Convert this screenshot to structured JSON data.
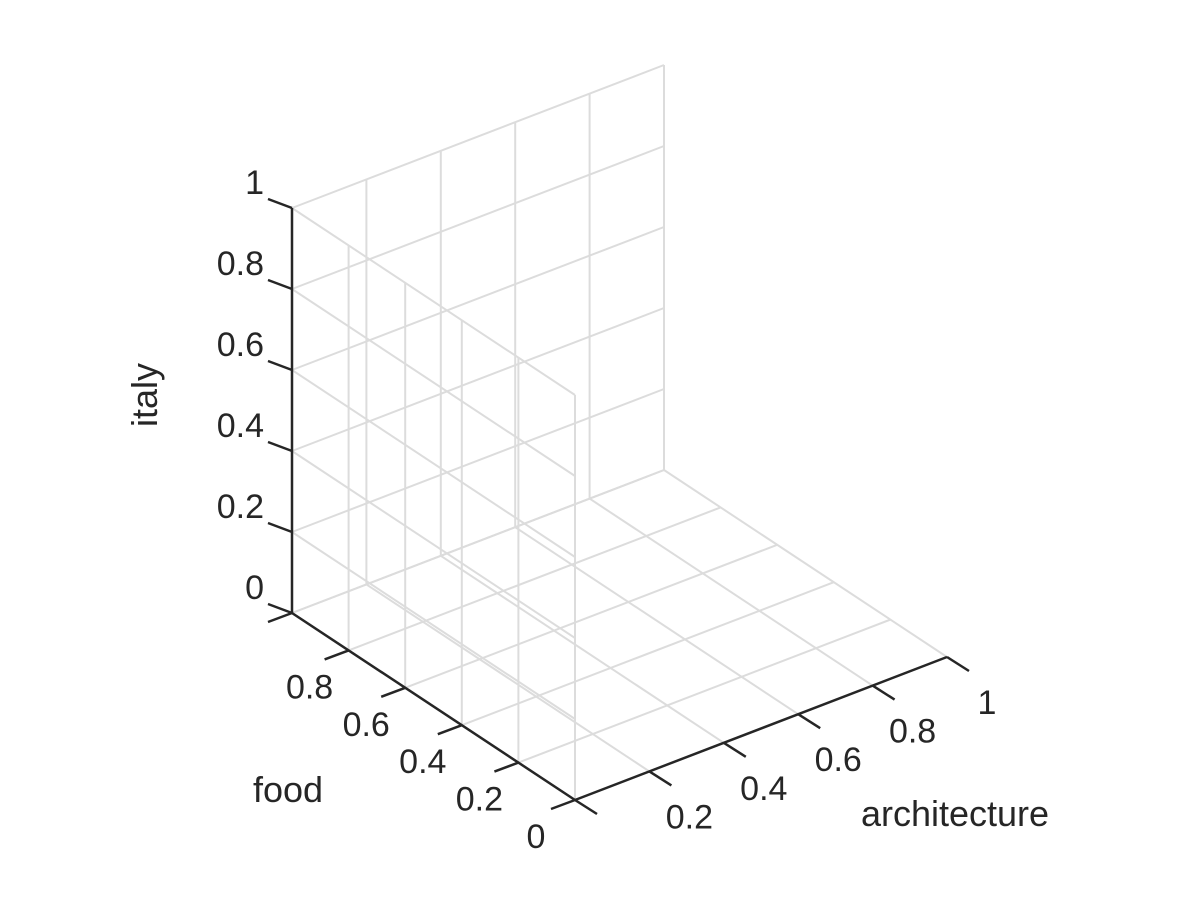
{
  "chart_data": {
    "type": "scatter",
    "projection": "3d",
    "xlabel": "architecture",
    "ylabel": "food",
    "zlabel": "italy",
    "xlim": [
      0,
      1
    ],
    "ylim": [
      0,
      1
    ],
    "zlim": [
      0,
      1
    ],
    "x_ticks": [
      0,
      0.2,
      0.4,
      0.6,
      0.8,
      1
    ],
    "y_ticks": [
      0,
      0.2,
      0.4,
      0.6,
      0.8,
      1
    ],
    "z_ticks": [
      0,
      0.2,
      0.4,
      0.6,
      0.8,
      1
    ],
    "x_tick_labels": [
      "",
      "0.2",
      "0.4",
      "0.6",
      "0.8",
      "1"
    ],
    "y_tick_labels": [
      "0",
      "0.2",
      "0.4",
      "0.6",
      "0.8",
      ""
    ],
    "z_tick_labels": [
      "0",
      "0.2",
      "0.4",
      "0.6",
      "0.8",
      "1"
    ],
    "points": [],
    "grid": true,
    "colors": {
      "grid": "#dcdcdc",
      "axis": "#262626",
      "text": "#262626"
    }
  }
}
